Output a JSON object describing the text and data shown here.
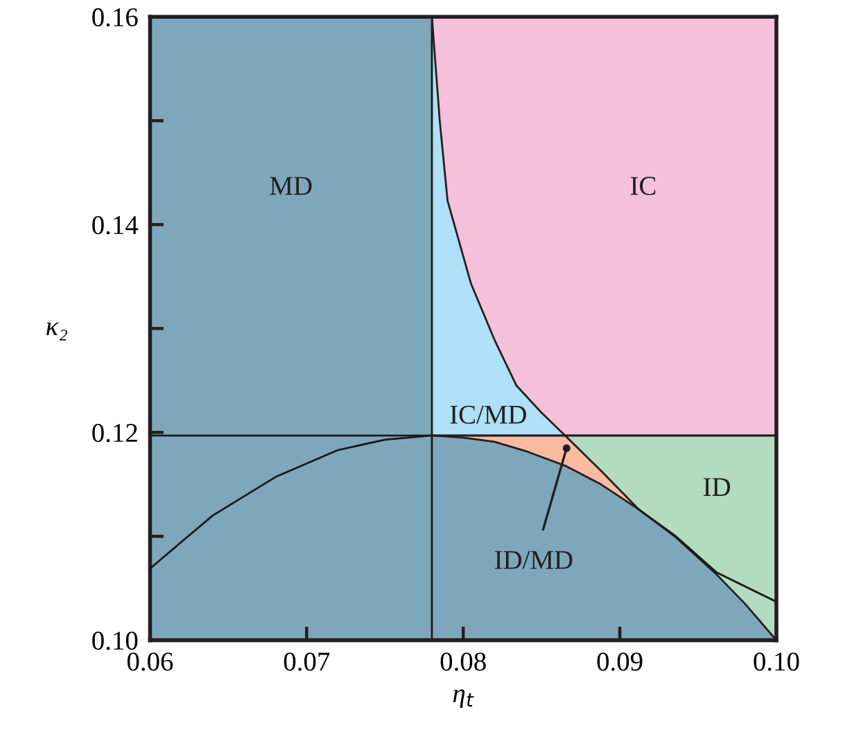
{
  "chart_data": {
    "type": "area",
    "xlabel": "η$_{t}$",
    "ylabel": "κ₂",
    "xlim": [
      0.06,
      0.1
    ],
    "ylim": [
      0.1,
      0.16
    ],
    "xticks": [
      0.06,
      0.07,
      0.08,
      0.09,
      {
        "value": 0.1,
        "label": "0.10"
      }
    ],
    "yticks": [
      {
        "value": 0.1,
        "label": "0.10"
      },
      {
        "value": 0.11,
        "label": null
      },
      {
        "value": 0.12,
        "label": "0.12"
      },
      {
        "value": 0.13,
        "label": null
      },
      {
        "value": 0.14,
        "label": "0.14"
      },
      {
        "value": 0.15,
        "label": null
      },
      {
        "value": 0.16,
        "label": "0.16"
      }
    ],
    "series": [
      {
        "name": "IC",
        "color": "#f5c0d9",
        "x": [
          0.078,
          0.1
        ],
        "values": [
          0.16,
          0.16
        ]
      },
      {
        "name": "IC/MD",
        "color": "#aee0f7",
        "x": [
          0.078,
          0.0785,
          0.079,
          0.0805,
          0.082,
          0.0834,
          0.085,
          0.0865
        ],
        "values": [
          0.16,
          0.15,
          0.1423,
          0.1343,
          0.1289,
          0.1245,
          0.1219,
          0.1197
        ]
      },
      {
        "name": "ID",
        "color": "#b3dbbf",
        "x": [
          0.0865,
          0.1
        ],
        "values": [
          0.1197,
          0.1197
        ]
      },
      {
        "name": "ID/MD",
        "color": "#f9bba0",
        "x": [
          0.078,
          0.0865,
          0.0888,
          0.0912
        ],
        "values": [
          0.1197,
          0.1197,
          0.1163,
          0.1126
        ]
      },
      {
        "color": "#7ea7bb",
        "x": [
          0.078,
          0.08,
          0.082,
          0.084,
          0.0865,
          0.0888,
          0.0912,
          0.0935,
          0.0962,
          0.098,
          0.1
        ],
        "values": [
          0.1197,
          0.1195,
          0.1191,
          0.1182,
          0.1168,
          0.115,
          0.1126,
          0.11,
          0.1063,
          0.1035,
          0.1
        ]
      },
      {
        "name": "MD",
        "color": "#7ea7bb",
        "x": [
          0.06,
          0.078
        ],
        "values": [
          0.16,
          0.16
        ]
      },
      {
        "type": "line",
        "color": "#1a1a1a",
        "x": [
          0.06,
          0.064,
          0.068,
          0.072,
          0.075,
          0.078
        ],
        "values": [
          0.1069,
          0.112,
          0.1157,
          0.1183,
          0.1193,
          0.1197
        ]
      },
      {
        "type": "line",
        "color": "#1a1a1a",
        "x": [
          0.0912,
          0.0935,
          0.0962,
          0.1
        ],
        "values": [
          0.1126,
          0.1101,
          0.1065,
          0.1037
        ]
      }
    ],
    "ref_lines": [
      {
        "axis": "y",
        "value": 0.1197,
        "color": "#1a1a1a"
      },
      {
        "axis": "x",
        "value": 0.078,
        "color": "#1a1a1a"
      }
    ]
  }
}
